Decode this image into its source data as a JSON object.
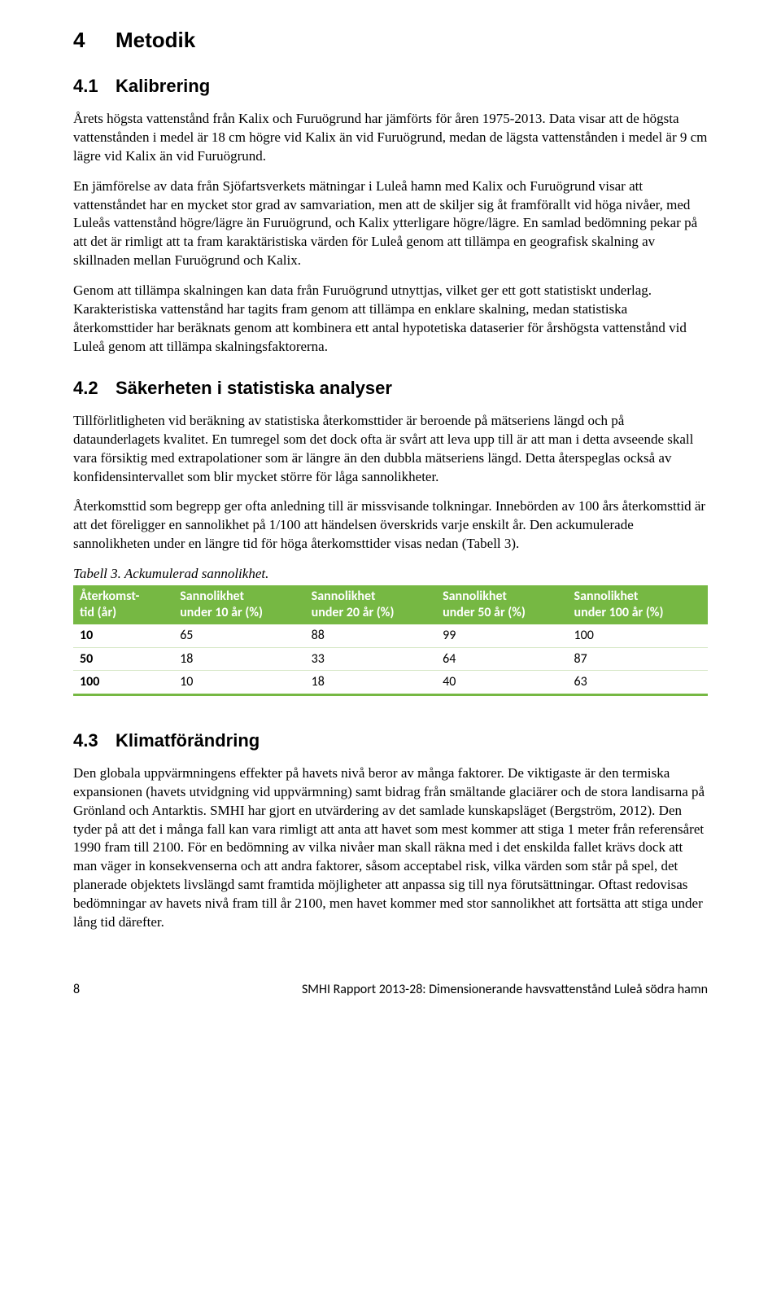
{
  "headings": {
    "h1_num": "4",
    "h1_text": "Metodik",
    "h2a_num": "4.1",
    "h2a_text": "Kalibrering",
    "h2b_num": "4.2",
    "h2b_text": "Säkerheten i statistiska analyser",
    "h2c_num": "4.3",
    "h2c_text": "Klimatförändring"
  },
  "paragraphs": {
    "p1": "Årets högsta vattenstånd från Kalix och Furuögrund har jämförts för åren 1975-2013. Data visar att de högsta vattenstånden i medel är 18 cm högre vid Kalix än vid Furuögrund, medan de lägsta vattenstånden i medel är 9 cm lägre vid Kalix än vid Furuögrund.",
    "p2": "En jämförelse av data från Sjöfartsverkets mätningar i Luleå hamn med Kalix och Furuögrund visar att vattenståndet har en mycket stor grad av samvariation, men att de skiljer sig åt framförallt vid höga nivåer, med Luleås vattenstånd högre/lägre än Furuögrund, och Kalix ytterligare högre/lägre. En samlad bedömning pekar på att det är rimligt att ta fram karaktäristiska värden för Luleå genom att tillämpa en geografisk skalning av skillnaden mellan Furuögrund och Kalix.",
    "p3": "Genom att tillämpa skalningen kan data från Furuögrund utnyttjas, vilket ger ett gott statistiskt underlag. Karakteristiska vattenstånd har tagits fram genom att tillämpa en enklare skalning, medan statistiska återkomsttider har beräknats genom att kombinera ett antal hypotetiska dataserier för årshögsta vattenstånd vid Luleå genom att tillämpa skalningsfaktorerna.",
    "p4": "Tillförlitligheten vid beräkning av statistiska återkomsttider är beroende på mätseriens längd och på dataunderlagets kvalitet. En tumregel som det dock ofta är svårt att leva upp till är att man i detta avseende skall vara försiktig med extrapolationer som är längre än den dubbla mätseriens längd. Detta återspeglas också av konfidensintervallet som blir mycket större för låga sannolikheter.",
    "p5": "Återkomsttid som begrepp ger ofta anledning till är missvisande tolkningar. Innebörden av 100 års återkomsttid är att det föreligger en sannolikhet på 1/100 att händelsen överskrids varje enskilt år. Den ackumulerade sannolikheten under en längre tid för höga återkomsttider visas nedan (Tabell 3).",
    "caption": "Tabell 3. Ackumulerad sannolikhet.",
    "p6": "Den globala uppvärmningens effekter på havets nivå beror av många faktorer. De viktigaste är den termiska expansionen (havets utvidgning vid uppvärmning) samt bidrag från smältande glaciärer och de stora landisarna på Grönland och Antarktis. SMHI har gjort en utvärdering av det samlade kunskapsläget (Bergström, 2012). Den tyder på att det i många fall kan vara rimligt att anta att havet som mest kommer att stiga 1 meter från referensåret 1990 fram till 2100. För en bedömning av vilka nivåer man skall räkna med i det enskilda fallet krävs dock att man väger in konsekvenserna och att andra faktorer, såsom acceptabel risk, vilka värden som står på spel, det planerade objektets livslängd samt framtida möjligheter att anpassa sig till nya förutsättningar. Oftast redovisas bedömningar av havets nivå fram till år 2100, men havet kommer med stor sannolikhet att fortsätta att stiga under lång tid därefter."
  },
  "table": {
    "columns": [
      {
        "line1": "Återkomst-",
        "line2": "tid (år)",
        "width": "16%"
      },
      {
        "line1": "Sannolikhet",
        "line2": "under 10 år (%)",
        "width": "21%"
      },
      {
        "line1": "Sannolikhet",
        "line2": "under 20 år (%)",
        "width": "21%"
      },
      {
        "line1": "Sannolikhet",
        "line2": "under 50 år (%)",
        "width": "21%"
      },
      {
        "line1": "Sannolikhet",
        "line2": "under 100 år (%)",
        "width": "21%"
      }
    ],
    "rows": [
      [
        "10",
        "65",
        "88",
        "99",
        "100"
      ],
      [
        "50",
        "18",
        "33",
        "64",
        "87"
      ],
      [
        "100",
        "10",
        "18",
        "40",
        "63"
      ]
    ],
    "header_bg": "#76b843",
    "header_color": "#ffffff",
    "border_color": "#76b843"
  },
  "footer": {
    "page": "8",
    "text": "SMHI Rapport 2013-28: Dimensionerande havsvattenstånd Luleå södra hamn"
  }
}
